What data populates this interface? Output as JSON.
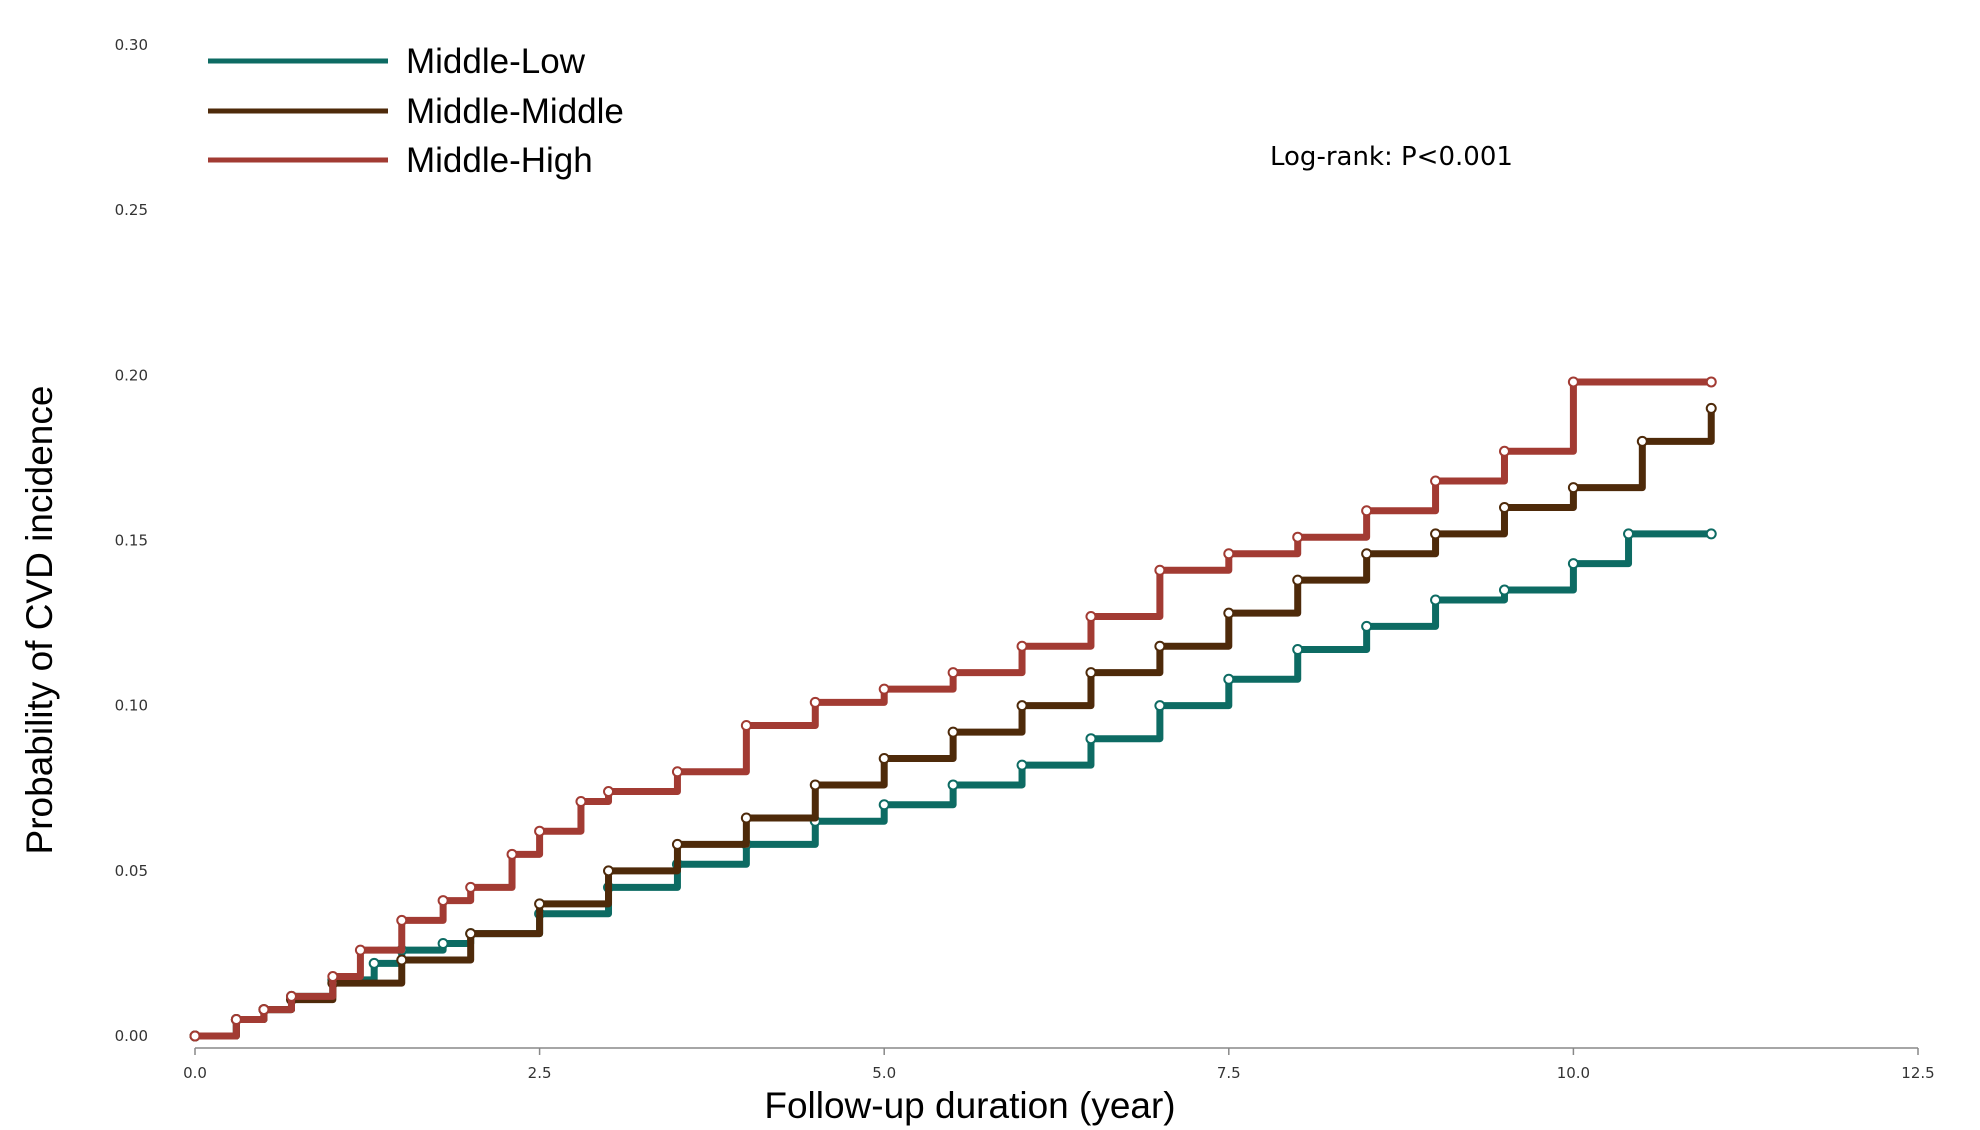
{
  "chart_data": {
    "type": "line",
    "title": "",
    "xlabel": "Follow-up duration (year)",
    "ylabel": "Probability of CVD incidence",
    "xlim": [
      0,
      12.5
    ],
    "ylim": [
      0,
      0.3
    ],
    "x_ticks": [
      "0.0",
      "2.5",
      "5.0",
      "7.5",
      "10.0",
      "12.5"
    ],
    "y_ticks": [
      "0.00",
      "0.05",
      "0.10",
      "0.15",
      "0.20",
      "0.25",
      "0.30"
    ],
    "grid": false,
    "legend_position": "top-left",
    "annotation": "Log-rank: P<0.001",
    "series": [
      {
        "name": "Middle-Low",
        "color": "#0d6b63",
        "x": [
          0,
          0.3,
          0.5,
          0.7,
          1.0,
          1.3,
          1.5,
          1.8,
          2.0,
          2.5,
          3.0,
          3.5,
          4.0,
          4.5,
          5.0,
          5.5,
          6.0,
          6.5,
          7.0,
          7.5,
          8.0,
          8.5,
          9.0,
          9.5,
          10.0,
          10.4,
          11.0
        ],
        "y": [
          0,
          0.005,
          0.008,
          0.012,
          0.017,
          0.022,
          0.026,
          0.028,
          0.031,
          0.037,
          0.045,
          0.052,
          0.058,
          0.065,
          0.07,
          0.076,
          0.082,
          0.09,
          0.1,
          0.108,
          0.117,
          0.124,
          0.132,
          0.135,
          0.143,
          0.152,
          0.152
        ]
      },
      {
        "name": "Middle-Middle",
        "color": "#4e2a0a",
        "x": [
          0,
          0.3,
          0.5,
          0.7,
          1.0,
          1.5,
          2.0,
          2.5,
          3.0,
          3.5,
          4.0,
          4.5,
          5.0,
          5.5,
          6.0,
          6.5,
          7.0,
          7.5,
          8.0,
          8.5,
          9.0,
          9.5,
          10.0,
          10.5,
          11.0
        ],
        "y": [
          0,
          0.005,
          0.008,
          0.011,
          0.016,
          0.023,
          0.031,
          0.04,
          0.05,
          0.058,
          0.066,
          0.076,
          0.084,
          0.092,
          0.1,
          0.11,
          0.118,
          0.128,
          0.138,
          0.146,
          0.152,
          0.16,
          0.166,
          0.18,
          0.19
        ]
      },
      {
        "name": "Middle-High",
        "color": "#a23b33",
        "x": [
          0,
          0.3,
          0.5,
          0.7,
          1.0,
          1.2,
          1.5,
          1.8,
          2.0,
          2.3,
          2.5,
          2.8,
          3.0,
          3.5,
          4.0,
          4.5,
          5.0,
          5.5,
          6.0,
          6.5,
          7.0,
          7.5,
          8.0,
          8.5,
          9.0,
          9.5,
          10.0,
          11.0
        ],
        "y": [
          0,
          0.005,
          0.008,
          0.012,
          0.018,
          0.026,
          0.035,
          0.041,
          0.045,
          0.055,
          0.062,
          0.071,
          0.074,
          0.08,
          0.094,
          0.101,
          0.105,
          0.11,
          0.118,
          0.127,
          0.141,
          0.146,
          0.151,
          0.159,
          0.168,
          0.177,
          0.198,
          0.198
        ]
      }
    ]
  }
}
